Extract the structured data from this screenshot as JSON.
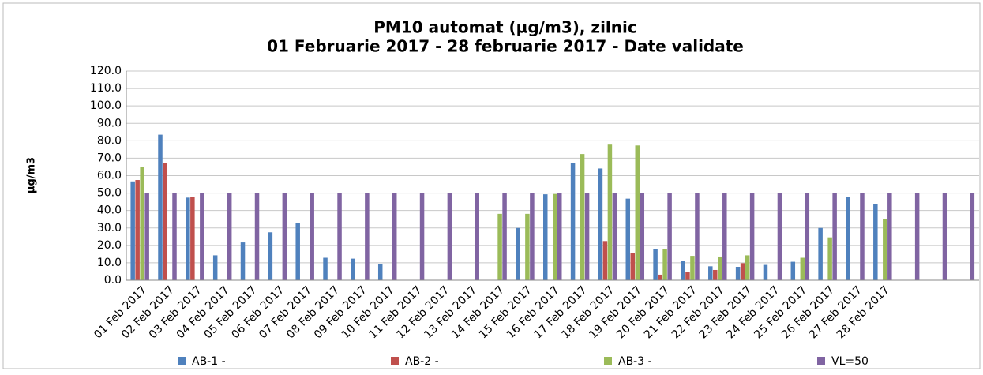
{
  "chart_data": {
    "type": "bar",
    "title": "PM10 automat (µg/m3), zilnic",
    "subtitle": "01 Februarie 2017 - 28 februarie 2017 - Date validate",
    "y_label": "µg/m3",
    "categories": [
      "01 Feb 2017",
      "02 Feb 2017",
      "03 Feb 2017",
      "04 Feb 2017",
      "05 Feb 2017",
      "06 Feb 2017",
      "07 Feb 2017",
      "08 Feb 2017",
      "09 Feb 2017",
      "10 Feb 2017",
      "11 Feb 2017",
      "12 Feb 2017",
      "13 Feb 2017",
      "14 Feb 2017",
      "15 Feb 2017",
      "16 Feb 2017",
      "17 Feb 2017",
      "18 Feb 2017",
      "19 Feb 2017",
      "20 Feb 2017",
      "21 Feb 2017",
      "22 Feb 2017",
      "23 Feb 2017",
      "24 Feb 2017",
      "25 Feb 2017",
      "26 Feb 2017",
      "27 Feb 2017",
      "28 Feb 2017",
      null,
      null,
      null
    ],
    "series": [
      {
        "name": "AB-1 -",
        "color": "#4f81bd",
        "values": [
          56.7,
          83.5,
          47.4,
          14.3,
          21.7,
          27.5,
          32.6,
          12.9,
          12.4,
          9.1,
          null,
          null,
          null,
          null,
          30.0,
          49.3,
          67.2,
          64.1,
          46.8,
          17.8,
          11.1,
          8.0,
          7.7,
          8.8,
          10.6,
          30.0,
          47.8,
          43.5,
          null,
          null,
          null
        ]
      },
      {
        "name": "AB-2 -",
        "color": "#c0504d",
        "values": [
          57.5,
          67.3,
          48.0,
          null,
          null,
          null,
          null,
          null,
          null,
          null,
          null,
          null,
          null,
          null,
          null,
          null,
          null,
          22.5,
          15.7,
          3.2,
          4.8,
          5.9,
          9.8,
          null,
          null,
          null,
          null,
          null,
          null,
          null,
          null
        ]
      },
      {
        "name": "AB-3 -",
        "color": "#9bbb59",
        "values": [
          65.0,
          null,
          null,
          null,
          null,
          null,
          null,
          null,
          null,
          null,
          null,
          null,
          null,
          38.1,
          38.1,
          49.5,
          72.4,
          77.8,
          77.3,
          17.8,
          14.0,
          13.6,
          14.3,
          null,
          12.9,
          24.6,
          null,
          35.0,
          null,
          null,
          null
        ]
      },
      {
        "name": "VL=50",
        "color": "#8064a2",
        "values": [
          50,
          50,
          50,
          50,
          50,
          50,
          50,
          50,
          50,
          50,
          50,
          50,
          50,
          50,
          50,
          50,
          50,
          50,
          50,
          50,
          50,
          50,
          50,
          50,
          50,
          50,
          50,
          50,
          50,
          50,
          50
        ]
      }
    ],
    "ylim": [
      0,
      120
    ],
    "yticks": [
      {
        "value": 0,
        "label": "0.0"
      },
      {
        "value": 10,
        "label": "10.0"
      },
      {
        "value": 20,
        "label": "20.0"
      },
      {
        "value": 30,
        "label": "30.0"
      },
      {
        "value": 40,
        "label": "40.0"
      },
      {
        "value": 50,
        "label": "50.0"
      },
      {
        "value": 60,
        "label": "60.0"
      },
      {
        "value": 70,
        "label": "70.0"
      },
      {
        "value": 80,
        "label": "80.0"
      },
      {
        "value": 90,
        "label": "90.0"
      },
      {
        "value": 100,
        "label": "100.0"
      },
      {
        "value": 110,
        "label": "110.0"
      },
      {
        "value": 120,
        "label": "120.0"
      }
    ],
    "grid": true,
    "legend": "bottom"
  }
}
